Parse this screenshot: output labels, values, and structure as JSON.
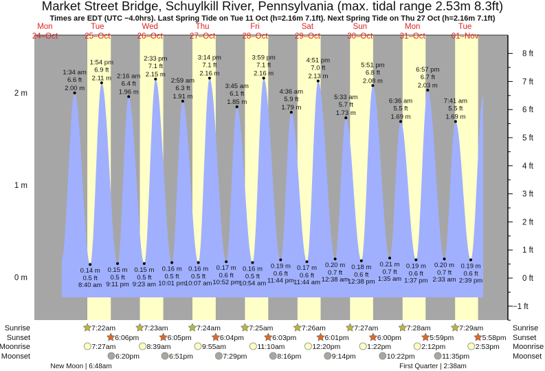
{
  "header": {
    "title": "Market Street Bridge, Schuylkill River, Pennsylvania (max. tidal range 2.53m 8.3ft)",
    "subtitle": "Times are EDT (UTC −4.0hrs). Last Spring Tide on Tue 11 Oct (h=2.16m 7.1ft). Next Spring Tide on Thu 27 Oct (h=2.16m 7.1ft)"
  },
  "colors": {
    "tide_fill": "#a0b0ff",
    "night": "#a6a6a6",
    "day": "#ffffc8",
    "day_label": "#e02020",
    "sunrise": "#b8b840",
    "sunset": "#e06828",
    "moonrise": "#ffffc0",
    "moonset": "#a8a8a0"
  },
  "chart_data": {
    "type": "area",
    "title": "Market Street Bridge, Schuylkill River, Pennsylvania",
    "ylabel_left": "m",
    "ylabel_right": "ft",
    "ylim_m": [
      -0.5,
      2.55
    ],
    "left_ticks": [
      "2 m",
      "1 m",
      "0 m"
    ],
    "left_tick_values": [
      2,
      1,
      0
    ],
    "right_ticks": [
      "8 ft",
      "7 ft",
      "6 ft",
      "5 ft",
      "4 ft",
      "3 ft",
      "2 ft",
      "1 ft",
      "0 ft",
      "−1 ft"
    ],
    "right_tick_values": [
      8,
      7,
      6,
      5,
      4,
      3,
      2,
      1,
      0,
      -1
    ],
    "days": [
      {
        "dow": "Mon",
        "date": "24–Oct"
      },
      {
        "dow": "Tue",
        "date": "25–Oct"
      },
      {
        "dow": "Wed",
        "date": "26–Oct"
      },
      {
        "dow": "Thu",
        "date": "27–Oct"
      },
      {
        "dow": "Fri",
        "date": "28–Oct"
      },
      {
        "dow": "Sat",
        "date": "29–Oct"
      },
      {
        "dow": "Sun",
        "date": "30–Oct"
      },
      {
        "dow": "Mon",
        "date": "31–Oct"
      },
      {
        "dow": "Tue",
        "date": "01–Nov"
      }
    ],
    "tides": [
      {
        "type": "high",
        "day": 1,
        "time": "1:34 am",
        "h": 1.5667,
        "m": "2.00 m",
        "ft": "6.6 ft",
        "v": 2.0
      },
      {
        "type": "low",
        "day": 1,
        "time": "8:40 am",
        "h": 8.667,
        "m": "0.14 m",
        "ft": "0.5 ft",
        "v": 0.14
      },
      {
        "type": "high",
        "day": 1,
        "time": "1:54 pm",
        "h": 13.9,
        "m": "2.11 m",
        "ft": "6.9 ft",
        "v": 2.11
      },
      {
        "type": "low",
        "day": 1,
        "time": "9:11 pm",
        "h": 21.183,
        "m": "0.15 m",
        "ft": "0.5 ft",
        "v": 0.15
      },
      {
        "type": "high",
        "day": 2,
        "time": "2:16 am",
        "h": 2.267,
        "m": "1.96 m",
        "ft": "6.4 ft",
        "v": 1.96
      },
      {
        "type": "low",
        "day": 2,
        "time": "9:23 am",
        "h": 9.383,
        "m": "0.15 m",
        "ft": "0.5 ft",
        "v": 0.15
      },
      {
        "type": "high",
        "day": 2,
        "time": "2:33 pm",
        "h": 14.55,
        "m": "2.15 m",
        "ft": "7.1 ft",
        "v": 2.15
      },
      {
        "type": "low",
        "day": 2,
        "time": "10:01 pm",
        "h": 22.017,
        "m": "0.16 m",
        "ft": "0.5 ft",
        "v": 0.16
      },
      {
        "type": "high",
        "day": 3,
        "time": "2:59 am",
        "h": 2.983,
        "m": "1.91 m",
        "ft": "6.3 ft",
        "v": 1.91
      },
      {
        "type": "low",
        "day": 3,
        "time": "10:07 am",
        "h": 10.117,
        "m": "0.16 m",
        "ft": "0.5 ft",
        "v": 0.16
      },
      {
        "type": "high",
        "day": 3,
        "time": "3:14 pm",
        "h": 15.233,
        "m": "2.16 m",
        "ft": "7.1 ft",
        "v": 2.16
      },
      {
        "type": "low",
        "day": 3,
        "time": "10:52 pm",
        "h": 22.867,
        "m": "0.17 m",
        "ft": "0.6 ft",
        "v": 0.17
      },
      {
        "type": "high",
        "day": 4,
        "time": "3:45 am",
        "h": 3.75,
        "m": "1.85 m",
        "ft": "6.1 ft",
        "v": 1.85
      },
      {
        "type": "low",
        "day": 4,
        "time": "10:54 am",
        "h": 10.9,
        "m": "0.16 m",
        "ft": "0.5 ft",
        "v": 0.16
      },
      {
        "type": "high",
        "day": 4,
        "time": "3:59 pm",
        "h": 15.983,
        "m": "2.16 m",
        "ft": "7.1 ft",
        "v": 2.16
      },
      {
        "type": "low",
        "day": 4,
        "time": "11:44 pm",
        "h": 23.733,
        "m": "0.19 m",
        "ft": "0.6 ft",
        "v": 0.19
      },
      {
        "type": "high",
        "day": 5,
        "time": "4:36 am",
        "h": 4.6,
        "m": "1.79 m",
        "ft": "5.9 ft",
        "v": 1.79
      },
      {
        "type": "low",
        "day": 5,
        "time": "11:44 am",
        "h": 11.733,
        "m": "0.17 m",
        "ft": "0.6 ft",
        "v": 0.17
      },
      {
        "type": "high",
        "day": 5,
        "time": "4:51 pm",
        "h": 16.85,
        "m": "2.13 m",
        "ft": "7.0 ft",
        "v": 2.13
      },
      {
        "type": "low",
        "day": 6,
        "time": "12:38 am",
        "h": 0.633,
        "m": "0.20 m",
        "ft": "0.7 ft",
        "v": 0.2
      },
      {
        "type": "high",
        "day": 6,
        "time": "5:33 am",
        "h": 5.55,
        "m": "1.73 m",
        "ft": "5.7 ft",
        "v": 1.73
      },
      {
        "type": "low",
        "day": 6,
        "time": "12:38 pm",
        "h": 12.633,
        "m": "0.18 m",
        "ft": "0.6 ft",
        "v": 0.18
      },
      {
        "type": "high",
        "day": 6,
        "time": "5:51 pm",
        "h": 17.85,
        "m": "2.08 m",
        "ft": "6.8 ft",
        "v": 2.08
      },
      {
        "type": "low",
        "day": 7,
        "time": "1:35 am",
        "h": 1.583,
        "m": "0.21 m",
        "ft": "0.7 ft",
        "v": 0.21
      },
      {
        "type": "high",
        "day": 7,
        "time": "6:36 am",
        "h": 6.6,
        "m": "1.69 m",
        "ft": "5.5 ft",
        "v": 1.69
      },
      {
        "type": "low",
        "day": 7,
        "time": "1:37 pm",
        "h": 13.617,
        "m": "0.19 m",
        "ft": "0.6 ft",
        "v": 0.19
      },
      {
        "type": "high",
        "day": 7,
        "time": "6:57 pm",
        "h": 18.95,
        "m": "2.03 m",
        "ft": "6.7 ft",
        "v": 2.03
      },
      {
        "type": "low",
        "day": 8,
        "time": "2:33 am",
        "h": 2.55,
        "m": "0.20 m",
        "ft": "0.7 ft",
        "v": 0.2
      },
      {
        "type": "high",
        "day": 8,
        "time": "7:41 am",
        "h": 7.683,
        "m": "1.69 m",
        "ft": "5.5 ft",
        "v": 1.69
      },
      {
        "type": "low",
        "day": 8,
        "time": "2:39 pm",
        "h": 14.65,
        "m": "0.19 m",
        "ft": "0.6 ft",
        "v": 0.19
      }
    ],
    "series_start": {
      "day": 0,
      "h": 19.7,
      "v": 0.2
    },
    "series_end": {
      "day": 8,
      "h": 20.3,
      "v": 1.97
    }
  },
  "astro": {
    "row_labels": {
      "sunrise": "Sunrise",
      "sunset": "Sunset",
      "moonrise": "Moonrise",
      "moonset": "Moonset"
    },
    "sunrise": [
      {
        "day": 1,
        "h": 7.367,
        "t": "7:22am"
      },
      {
        "day": 2,
        "h": 7.383,
        "t": "7:23am"
      },
      {
        "day": 3,
        "h": 7.4,
        "t": "7:24am"
      },
      {
        "day": 4,
        "h": 7.417,
        "t": "7:25am"
      },
      {
        "day": 5,
        "h": 7.433,
        "t": "7:26am"
      },
      {
        "day": 6,
        "h": 7.45,
        "t": "7:27am"
      },
      {
        "day": 7,
        "h": 7.467,
        "t": "7:28am"
      },
      {
        "day": 8,
        "h": 7.483,
        "t": "7:29am"
      }
    ],
    "sunset": [
      {
        "day": 1,
        "h": 18.1,
        "t": "6:06pm"
      },
      {
        "day": 2,
        "h": 18.083,
        "t": "6:05pm"
      },
      {
        "day": 3,
        "h": 18.067,
        "t": "6:04pm"
      },
      {
        "day": 4,
        "h": 18.05,
        "t": "6:03pm"
      },
      {
        "day": 5,
        "h": 18.017,
        "t": "6:01pm"
      },
      {
        "day": 6,
        "h": 18.0,
        "t": "6:00pm"
      },
      {
        "day": 7,
        "h": 17.983,
        "t": "5:59pm"
      },
      {
        "day": 8,
        "h": 17.967,
        "t": "5:58pm"
      }
    ],
    "moonrise": [
      {
        "day": 1,
        "h": 7.45,
        "t": "7:27am"
      },
      {
        "day": 2,
        "h": 8.65,
        "t": "8:39am"
      },
      {
        "day": 3,
        "h": 9.917,
        "t": "9:55am"
      },
      {
        "day": 4,
        "h": 11.167,
        "t": "11:10am"
      },
      {
        "day": 5,
        "h": 12.333,
        "t": "12:20pm"
      },
      {
        "day": 6,
        "h": 13.367,
        "t": "1:22pm"
      },
      {
        "day": 7,
        "h": 14.2,
        "t": "2:12pm"
      },
      {
        "day": 8,
        "h": 14.883,
        "t": "2:53pm"
      }
    ],
    "moonset": [
      {
        "day": 1,
        "h": 18.333,
        "t": "6:20pm"
      },
      {
        "day": 2,
        "h": 18.85,
        "t": "6:51pm"
      },
      {
        "day": 3,
        "h": 19.483,
        "t": "7:29pm"
      },
      {
        "day": 4,
        "h": 20.267,
        "t": "8:16pm"
      },
      {
        "day": 5,
        "h": 21.233,
        "t": "9:14pm"
      },
      {
        "day": 6,
        "h": 22.367,
        "t": "10:22pm"
      },
      {
        "day": 7,
        "h": 23.583,
        "t": "11:35pm"
      }
    ],
    "phases": [
      {
        "label": "New Moon | 6:48am"
      },
      {
        "label": "First Quarter | 2:38am"
      }
    ]
  }
}
